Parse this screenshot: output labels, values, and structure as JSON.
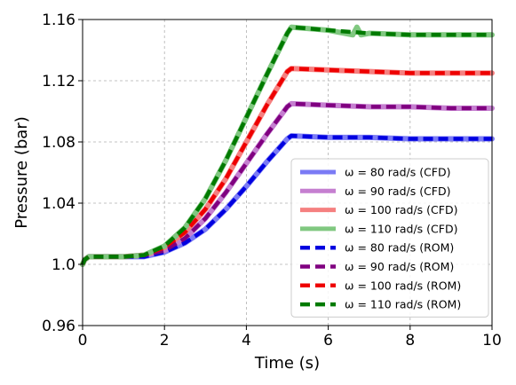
{
  "chart_data": {
    "type": "line",
    "title": "",
    "xlabel": "Time (s)",
    "ylabel": "Pressure (bar)",
    "xlim": [
      0,
      10
    ],
    "ylim": [
      0.96,
      1.16
    ],
    "grid": true,
    "legend_position": "lower-right",
    "x_ticks": [
      0,
      2,
      4,
      6,
      8,
      10
    ],
    "x_tick_labels": [
      "0",
      "2",
      "4",
      "6",
      "8",
      "10"
    ],
    "y_ticks": [
      0.96,
      1.0,
      1.04,
      1.08,
      1.12,
      1.16
    ],
    "y_tick_labels": [
      "0.96",
      "1.0",
      "1.04",
      "1.08",
      "1.12",
      "1.16"
    ],
    "series": [
      {
        "name": "ω = 80 rad/s (CFD)",
        "color": "#7b7bf5",
        "style": "solid",
        "x": [
          0,
          0.05,
          0.15,
          0.3,
          1.0,
          1.5,
          2.0,
          2.5,
          3.0,
          3.5,
          4.0,
          4.5,
          5.0,
          5.1,
          6.0,
          7.0,
          8.0,
          9.0,
          10.0
        ],
        "y": [
          1.0,
          1.003,
          1.005,
          1.005,
          1.005,
          1.005,
          1.008,
          1.014,
          1.023,
          1.036,
          1.051,
          1.067,
          1.082,
          1.084,
          1.083,
          1.083,
          1.082,
          1.082,
          1.082
        ]
      },
      {
        "name": "ω = 90 rad/s (CFD)",
        "color": "#c57fd0",
        "style": "solid",
        "x": [
          0,
          0.05,
          0.15,
          0.3,
          1.0,
          1.5,
          2.0,
          2.5,
          3.0,
          3.5,
          4.0,
          4.5,
          5.0,
          5.1,
          6.0,
          7.0,
          8.0,
          9.0,
          10.0
        ],
        "y": [
          1.0,
          1.003,
          1.005,
          1.005,
          1.005,
          1.006,
          1.009,
          1.017,
          1.03,
          1.047,
          1.066,
          1.085,
          1.103,
          1.105,
          1.104,
          1.103,
          1.103,
          1.102,
          1.102
        ]
      },
      {
        "name": "ω = 100 rad/s (CFD)",
        "color": "#f58080",
        "style": "solid",
        "x": [
          0,
          0.05,
          0.15,
          0.3,
          1.0,
          1.5,
          2.0,
          2.5,
          3.0,
          3.5,
          4.0,
          4.5,
          5.0,
          5.1,
          6.0,
          7.0,
          8.0,
          9.0,
          10.0
        ],
        "y": [
          1.0,
          1.003,
          1.005,
          1.005,
          1.005,
          1.006,
          1.011,
          1.021,
          1.036,
          1.056,
          1.08,
          1.104,
          1.126,
          1.128,
          1.127,
          1.126,
          1.125,
          1.125,
          1.125
        ]
      },
      {
        "name": "ω = 110 rad/s (CFD)",
        "color": "#80c880",
        "style": "solid",
        "x": [
          0,
          0.05,
          0.15,
          0.3,
          1.0,
          1.5,
          2.0,
          2.5,
          3.0,
          3.5,
          4.0,
          4.5,
          5.0,
          5.1,
          6.0,
          6.6,
          6.7,
          6.8,
          7.0,
          8.0,
          9.0,
          10.0
        ],
        "y": [
          1.0,
          1.003,
          1.005,
          1.005,
          1.005,
          1.006,
          1.012,
          1.024,
          1.043,
          1.068,
          1.096,
          1.124,
          1.151,
          1.155,
          1.153,
          1.15,
          1.155,
          1.15,
          1.151,
          1.15,
          1.15,
          1.15
        ]
      },
      {
        "name": "ω = 80 rad/s (ROM)",
        "color": "#0000e0",
        "style": "dashed",
        "x": [
          0,
          0.05,
          0.15,
          0.3,
          1.0,
          1.5,
          2.0,
          2.5,
          3.0,
          3.5,
          4.0,
          4.5,
          5.0,
          5.1,
          6.0,
          7.0,
          8.0,
          9.0,
          10.0
        ],
        "y": [
          1.0,
          1.003,
          1.005,
          1.005,
          1.005,
          1.005,
          1.008,
          1.014,
          1.023,
          1.036,
          1.051,
          1.067,
          1.082,
          1.084,
          1.083,
          1.083,
          1.082,
          1.082,
          1.082
        ]
      },
      {
        "name": "ω = 90 rad/s (ROM)",
        "color": "#800080",
        "style": "dashed",
        "x": [
          0,
          0.05,
          0.15,
          0.3,
          1.0,
          1.5,
          2.0,
          2.5,
          3.0,
          3.5,
          4.0,
          4.5,
          5.0,
          5.1,
          6.0,
          7.0,
          8.0,
          9.0,
          10.0
        ],
        "y": [
          1.0,
          1.003,
          1.005,
          1.005,
          1.005,
          1.006,
          1.009,
          1.017,
          1.03,
          1.047,
          1.066,
          1.085,
          1.103,
          1.105,
          1.104,
          1.103,
          1.103,
          1.102,
          1.102
        ]
      },
      {
        "name": "ω = 100 rad/s (ROM)",
        "color": "#ee0000",
        "style": "dashed",
        "x": [
          0,
          0.05,
          0.15,
          0.3,
          1.0,
          1.5,
          2.0,
          2.5,
          3.0,
          3.5,
          4.0,
          4.5,
          5.0,
          5.1,
          6.0,
          7.0,
          8.0,
          9.0,
          10.0
        ],
        "y": [
          1.0,
          1.003,
          1.005,
          1.005,
          1.005,
          1.006,
          1.011,
          1.021,
          1.036,
          1.056,
          1.08,
          1.104,
          1.126,
          1.128,
          1.127,
          1.126,
          1.125,
          1.125,
          1.125
        ]
      },
      {
        "name": "ω = 110 rad/s (ROM)",
        "color": "#007a00",
        "style": "dashed",
        "x": [
          0,
          0.05,
          0.15,
          0.3,
          1.0,
          1.5,
          2.0,
          2.5,
          3.0,
          3.5,
          4.0,
          4.5,
          5.0,
          5.1,
          6.0,
          7.0,
          8.0,
          9.0,
          10.0
        ],
        "y": [
          1.0,
          1.003,
          1.005,
          1.005,
          1.005,
          1.006,
          1.012,
          1.024,
          1.043,
          1.068,
          1.096,
          1.124,
          1.151,
          1.155,
          1.153,
          1.151,
          1.15,
          1.15,
          1.15
        ]
      }
    ]
  }
}
